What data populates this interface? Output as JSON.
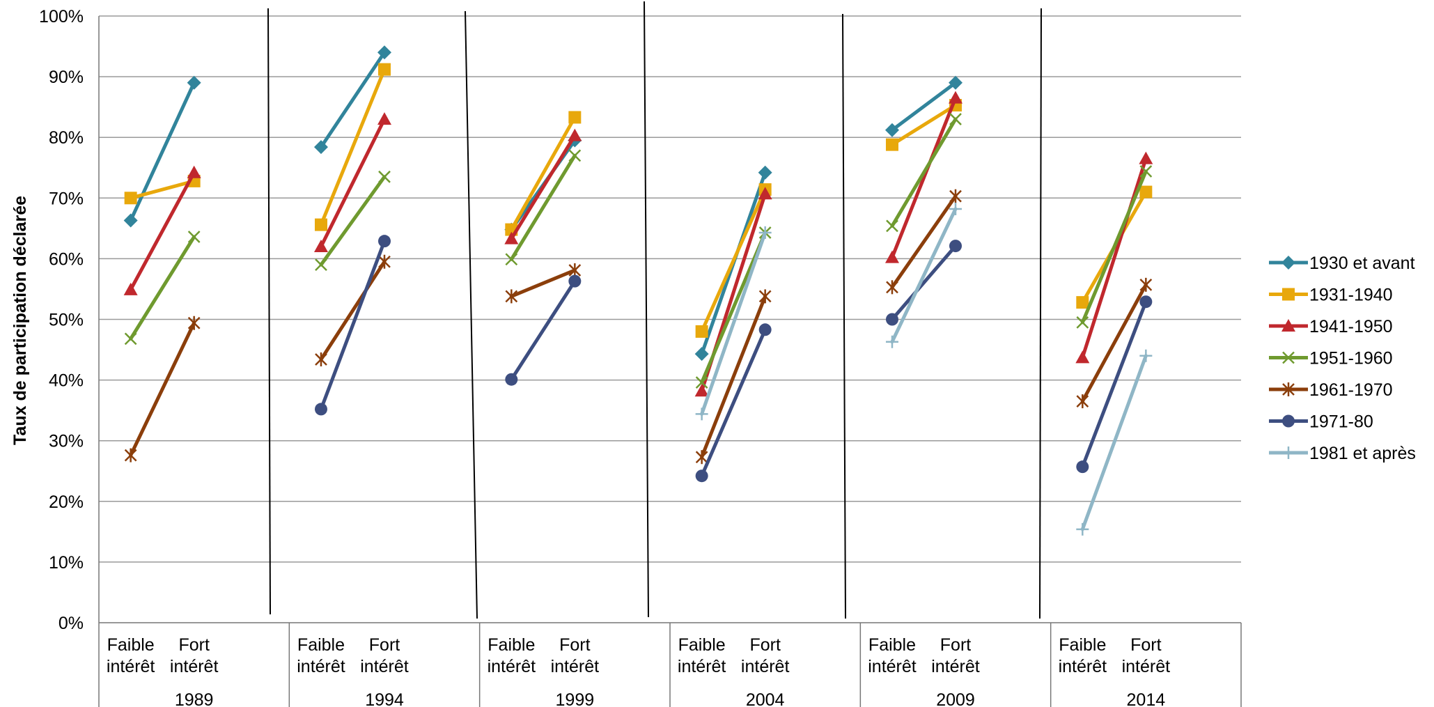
{
  "chart_data": {
    "type": "line",
    "ylabel": "Taux de participation déclarée",
    "xlabel": "",
    "ylim": [
      0,
      100
    ],
    "y_ticks": [
      "0%",
      "10%",
      "20%",
      "30%",
      "40%",
      "50%",
      "60%",
      "70%",
      "80%",
      "90%",
      "100%"
    ],
    "grid": true,
    "legend_position": "right",
    "groups": [
      "1989",
      "1994",
      "1999",
      "2004",
      "2009",
      "2014"
    ],
    "subcategories": [
      {
        "line1": "Faible",
        "line2": "intérêt"
      },
      {
        "line1": "Fort",
        "line2": "intérêt"
      }
    ],
    "series": [
      {
        "name": "1930 et avant",
        "color": "#31849b",
        "marker": "diamond",
        "values": [
          [
            66.3,
            89.0
          ],
          [
            78.4,
            94.0
          ],
          [
            64.8,
            79.5
          ],
          [
            44.3,
            74.2
          ],
          [
            81.2,
            89.0
          ],
          null
        ]
      },
      {
        "name": "1931-1940",
        "color": "#e8a80c",
        "marker": "square",
        "values": [
          [
            70.0,
            72.8
          ],
          [
            65.6,
            91.2
          ],
          [
            64.8,
            83.3
          ],
          [
            48.0,
            71.4
          ],
          [
            78.8,
            85.3
          ],
          [
            52.8,
            71.0
          ]
        ]
      },
      {
        "name": "1941-1950",
        "color": "#c0282d",
        "marker": "triangle",
        "values": [
          [
            54.9,
            74.2
          ],
          [
            62.0,
            83.0
          ],
          [
            63.3,
            80.3
          ],
          [
            38.2,
            70.7
          ],
          [
            60.2,
            86.5
          ],
          [
            43.7,
            76.5
          ]
        ]
      },
      {
        "name": "1951-1960",
        "color": "#6f9a2f",
        "marker": "x",
        "values": [
          [
            46.8,
            63.6
          ],
          [
            59.0,
            73.5
          ],
          [
            59.9,
            77.0
          ],
          [
            39.6,
            64.3
          ],
          [
            65.4,
            83.0
          ],
          [
            49.5,
            74.4
          ]
        ]
      },
      {
        "name": "1961-1970",
        "color": "#8b3e0b",
        "marker": "star",
        "values": [
          [
            27.6,
            49.4
          ],
          [
            43.4,
            59.5
          ],
          [
            53.8,
            58.1
          ],
          [
            27.3,
            53.8
          ],
          [
            55.3,
            70.3
          ],
          [
            36.5,
            55.7
          ]
        ]
      },
      {
        "name": "1971-80",
        "color": "#3d4e80",
        "marker": "circle",
        "values": [
          null,
          [
            35.2,
            62.9
          ],
          [
            40.1,
            56.3
          ],
          [
            24.2,
            48.3
          ],
          [
            50.0,
            62.1
          ],
          [
            25.7,
            52.9
          ]
        ]
      },
      {
        "name": "1981 et après",
        "color": "#8fb6c6",
        "marker": "plus",
        "values": [
          null,
          null,
          null,
          [
            34.4,
            64.3
          ],
          [
            46.3,
            68.2
          ],
          [
            15.4,
            44.0
          ]
        ]
      }
    ]
  }
}
